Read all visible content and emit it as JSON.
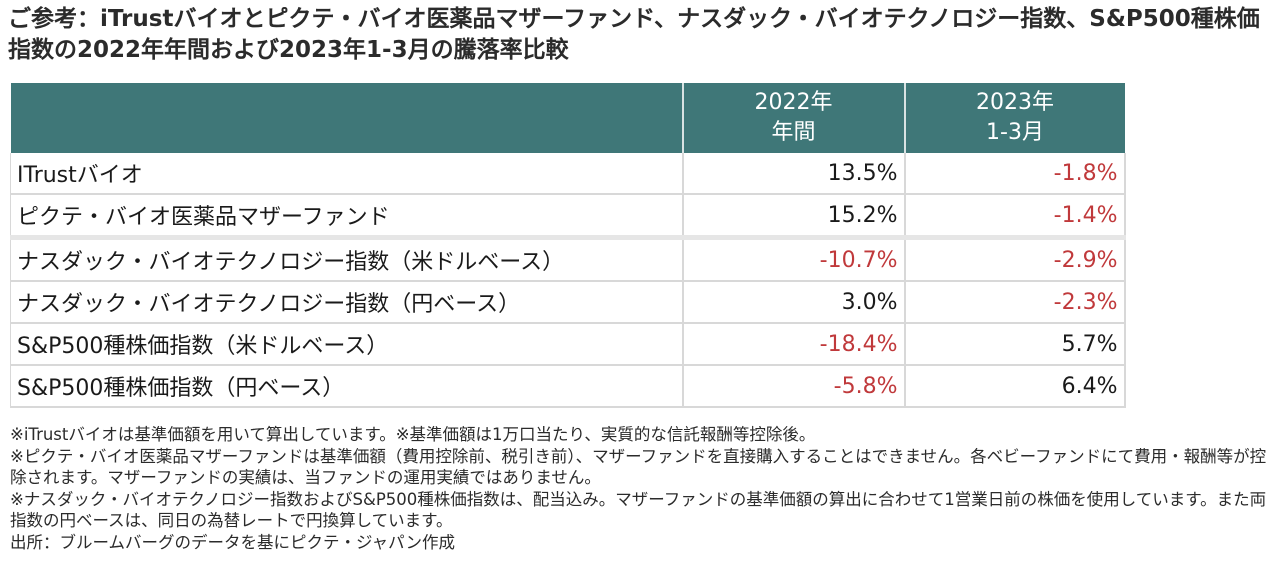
{
  "title_lines": [
    "ご参考：iTrustバイオとピクテ・バイオ医薬品マザーファンド、ナスダック・バイオテクノロジー指数、S&P500種株価",
    "指数の2022年年間および2023年1-3月の騰落率比較"
  ],
  "chart_data": {
    "type": "table",
    "columns": [
      {
        "line1": "2022年",
        "line2": "年間"
      },
      {
        "line1": "2023年",
        "line2": "1-3月"
      }
    ],
    "rows": [
      {
        "label": "ITrustバイオ",
        "values": [
          "13.5%",
          "-1.8%"
        ],
        "numeric": [
          13.5,
          -1.8
        ]
      },
      {
        "label": "ピクテ・バイオ医薬品マザーファンド",
        "values": [
          "15.2%",
          "-1.4%"
        ],
        "numeric": [
          15.2,
          -1.4
        ]
      },
      {
        "label": "ナスダック・バイオテクノロジー指数（米ドルベース）",
        "values": [
          "-10.7%",
          "-2.9%"
        ],
        "numeric": [
          -10.7,
          -2.9
        ]
      },
      {
        "label": "ナスダック・バイオテクノロジー指数（円ベース）",
        "values": [
          "3.0%",
          "-2.3%"
        ],
        "numeric": [
          3.0,
          -2.3
        ]
      },
      {
        "label": "S&P500種株価指数（米ドルベース）",
        "values": [
          "-18.4%",
          "5.7%"
        ],
        "numeric": [
          -18.4,
          5.7
        ]
      },
      {
        "label": "S&P500種株価指数（円ベース）",
        "values": [
          "-5.8%",
          "6.4%"
        ],
        "numeric": [
          -5.8,
          6.4
        ]
      }
    ],
    "header_color": "#3f7778",
    "negative_color": "#c0393b"
  },
  "notes": [
    "※iTrustバイオは基準価額を用いて算出しています。※基準価額は1万口当たり、実質的な信託報酬等控除後。",
    "※ピクテ・バイオ医薬品マザーファンドは基準価額（費用控除前、税引き前）、マザーファンドを直接購入することはできません。各ベビーファンドにて費用・報酬等が控除されます。マザーファンドの実績は、当ファンドの運用実績ではありません。",
    "※ナスダック・バイオテクノロジー指数およびS&P500種株価指数は、配当込み。マザーファンドの基準価額の算出に合わせて1営業日前の株価を使用しています。また両指数の円ベースは、同日の為替レートで円換算しています。",
    "出所：ブルームバーグのデータを基にピクテ・ジャパン作成"
  ]
}
